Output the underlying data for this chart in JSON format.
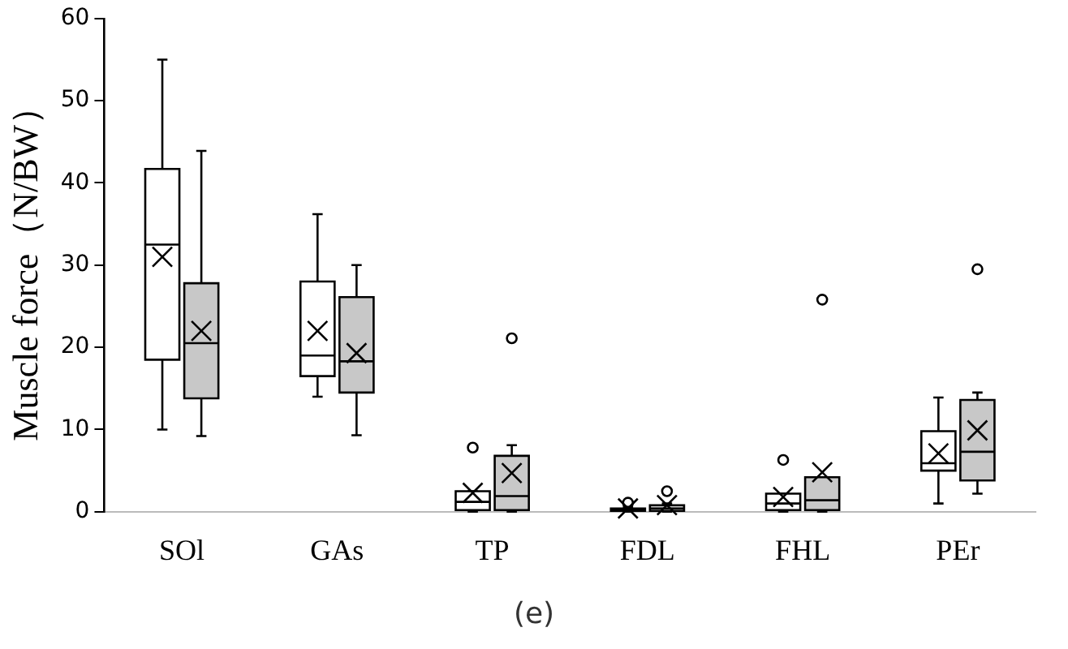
{
  "chart_data": {
    "type": "box",
    "ylabel": "Muscle force（N/BW）",
    "categories": [
      "SOl",
      "GAs",
      "TP",
      "FDL",
      "FHL",
      "PEr"
    ],
    "ylim": [
      0,
      60
    ],
    "yticks": [
      0,
      10,
      20,
      30,
      40,
      50,
      60
    ],
    "grid": false,
    "legend": false,
    "annotations": [
      "(e)"
    ],
    "series": [
      {
        "color": "#ffffff",
        "boxes": [
          {
            "low": 10,
            "q1": 18.5,
            "median": 32.5,
            "q3": 41.7,
            "high": 55,
            "mean": 31
          },
          {
            "low": 14,
            "q1": 16.5,
            "median": 19,
            "q3": 28,
            "high": 36.2,
            "mean": 22
          },
          {
            "low": 0,
            "q1": 0.2,
            "median": 1.2,
            "q3": 2.5,
            "high": 2.5,
            "mean": 2.3,
            "outliers": [
              7.8
            ]
          },
          {
            "low": 0,
            "q1": 0.1,
            "median": 0.2,
            "q3": 0.4,
            "high": 0.6,
            "mean": 0.4,
            "outliers": [
              1.1
            ]
          },
          {
            "low": 0,
            "q1": 0.2,
            "median": 1,
            "q3": 2.2,
            "high": 2.2,
            "mean": 1.8,
            "outliers": [
              6.3
            ]
          },
          {
            "low": 1,
            "q1": 5,
            "median": 5.9,
            "q3": 9.8,
            "high": 13.9,
            "mean": 7.1
          }
        ]
      },
      {
        "color": "#c8c8c8",
        "boxes": [
          {
            "low": 9.2,
            "q1": 13.8,
            "median": 20.5,
            "q3": 27.8,
            "high": 43.9,
            "mean": 22
          },
          {
            "low": 9.3,
            "q1": 14.5,
            "median": 18.3,
            "q3": 26.1,
            "high": 30,
            "mean": 19.3
          },
          {
            "low": 0,
            "q1": 0.2,
            "median": 1.9,
            "q3": 6.8,
            "high": 8.1,
            "mean": 4.7,
            "outliers": [
              21.1
            ]
          },
          {
            "low": 0,
            "q1": 0.1,
            "median": 0.4,
            "q3": 0.8,
            "high": 1,
            "mean": 0.8,
            "outliers": [
              2.5
            ]
          },
          {
            "low": 0,
            "q1": 0.2,
            "median": 1.4,
            "q3": 4.2,
            "high": 4.2,
            "mean": 4.8,
            "outliers": [
              25.8
            ]
          },
          {
            "low": 2.2,
            "q1": 3.8,
            "median": 7.3,
            "q3": 13.6,
            "high": 14.5,
            "mean": 9.9,
            "outliers": [
              29.5
            ]
          }
        ]
      }
    ]
  }
}
